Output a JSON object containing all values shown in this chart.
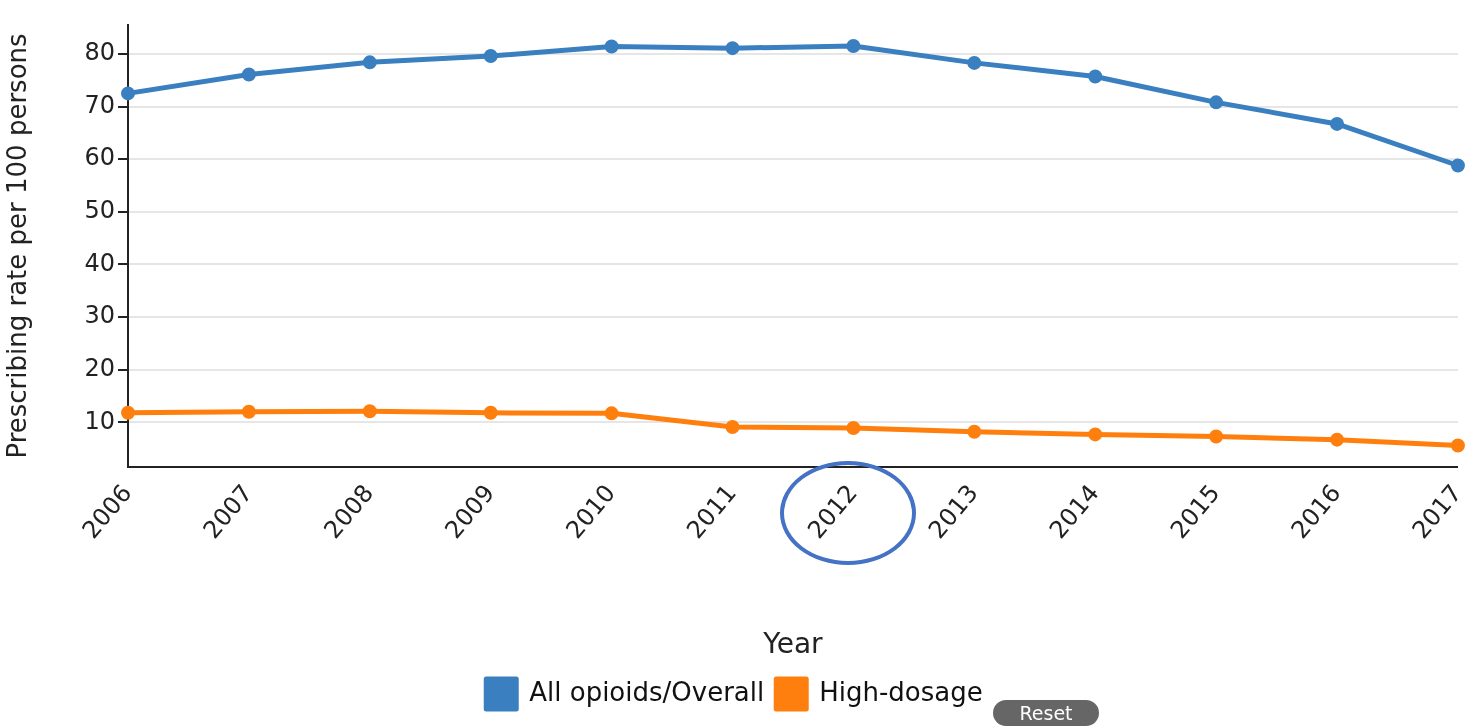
{
  "chart_data": {
    "type": "line",
    "xlabel": "Year",
    "ylabel": "Prescribing rate per 100 persons",
    "categories": [
      "2006",
      "2007",
      "2008",
      "2009",
      "2010",
      "2011",
      "2012",
      "2013",
      "2014",
      "2015",
      "2016",
      "2017"
    ],
    "series": [
      {
        "name": "All opioids/Overall",
        "color": "#3a7fbf",
        "values": [
          72.5,
          76.1,
          78.4,
          79.6,
          81.4,
          81.1,
          81.5,
          78.3,
          75.7,
          70.8,
          66.7,
          58.8
        ]
      },
      {
        "name": "High-dosage",
        "color": "#ff7f0e",
        "values": [
          11.8,
          12.0,
          12.1,
          11.8,
          11.7,
          9.1,
          8.9,
          8.2,
          7.7,
          7.3,
          6.7,
          5.6
        ]
      }
    ],
    "ylim": [
      1.5,
      85.5
    ],
    "yticks": [
      10,
      20,
      30,
      40,
      50,
      60,
      70,
      80
    ],
    "grid": "y",
    "legend": "bottom",
    "marker": "circle",
    "line_style": "solid",
    "annotations": [
      "Reset"
    ]
  }
}
